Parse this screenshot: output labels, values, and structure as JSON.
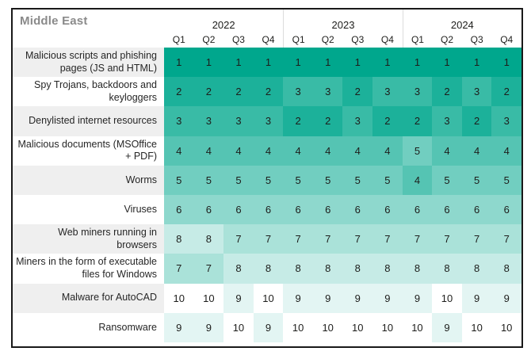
{
  "header": {
    "title": "Middle East"
  },
  "colors": {
    "frame_border": "#191919",
    "title_text": "#8A8A8A",
    "header_text": "#1D1D1B",
    "cell_text": "#1D1D1B",
    "label_stripe": "#EFEFEF",
    "header_separator": "#DCDCDC",
    "heat_scale_min": "#00A78D",
    "heat_scale_max": "#FFFFFF",
    "rank_colors": [
      "#00A78D",
      "#1CB19A",
      "#39BBA6",
      "#55C4B3",
      "#71CEC0",
      "#8ED8CD",
      "#AAE2D9",
      "#C6EBE6",
      "#E3F5F3",
      "#FFFFFF"
    ]
  },
  "chart_data": {
    "type": "heatmap",
    "title": "Middle East",
    "years": [
      "2022",
      "2023",
      "2024"
    ],
    "quarters": [
      "Q1",
      "Q2",
      "Q3",
      "Q4"
    ],
    "value_scale": {
      "min": 1,
      "max": 10,
      "meaning": "rank, 1 = darkest teal, 10 = white"
    },
    "rows": [
      {
        "label": "Malicious scripts and phishing pages (JS and HTML)",
        "values": [
          1,
          1,
          1,
          1,
          1,
          1,
          1,
          1,
          1,
          1,
          1,
          1
        ]
      },
      {
        "label": "Spy Trojans, backdoors and keyloggers",
        "values": [
          2,
          2,
          2,
          2,
          3,
          3,
          2,
          3,
          3,
          2,
          3,
          2
        ]
      },
      {
        "label": "Denylisted internet resources",
        "values": [
          3,
          3,
          3,
          3,
          2,
          2,
          3,
          2,
          2,
          3,
          2,
          3
        ]
      },
      {
        "label": "Malicious documents (MSOffice + PDF)",
        "values": [
          4,
          4,
          4,
          4,
          4,
          4,
          4,
          4,
          5,
          4,
          4,
          4
        ]
      },
      {
        "label": "Worms",
        "values": [
          5,
          5,
          5,
          5,
          5,
          5,
          5,
          5,
          4,
          5,
          5,
          5
        ]
      },
      {
        "label": "Viruses",
        "values": [
          6,
          6,
          6,
          6,
          6,
          6,
          6,
          6,
          6,
          6,
          6,
          6
        ]
      },
      {
        "label": "Web miners running in browsers",
        "values": [
          8,
          8,
          7,
          7,
          7,
          7,
          7,
          7,
          7,
          7,
          7,
          7
        ]
      },
      {
        "label": "Miners in the form of executable files for Windows",
        "values": [
          7,
          7,
          8,
          8,
          8,
          8,
          8,
          8,
          8,
          8,
          8,
          8
        ]
      },
      {
        "label": "Malware for AutoCAD",
        "values": [
          10,
          10,
          9,
          10,
          9,
          9,
          9,
          9,
          9,
          10,
          9,
          9
        ]
      },
      {
        "label": "Ransomware",
        "values": [
          9,
          9,
          10,
          9,
          10,
          10,
          10,
          10,
          10,
          9,
          10,
          10
        ]
      }
    ]
  }
}
